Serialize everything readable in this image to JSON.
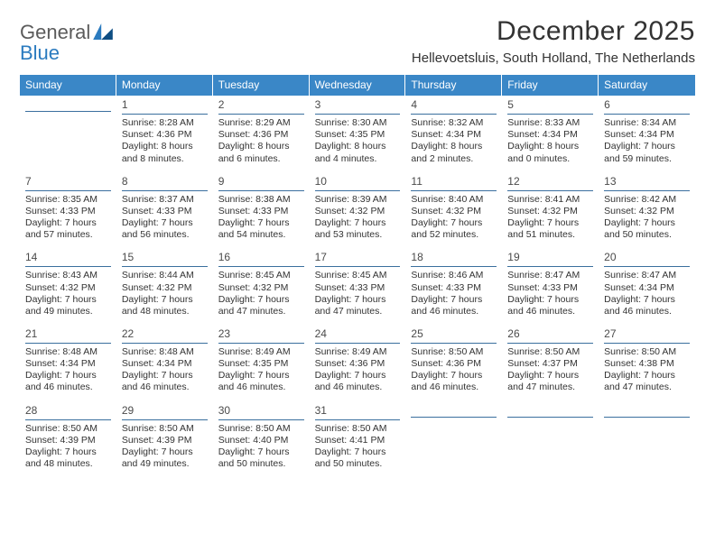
{
  "logo": {
    "word1": "General",
    "word2": "Blue"
  },
  "title": "December 2025",
  "subtitle": "Hellevoetsluis, South Holland, The Netherlands",
  "colors": {
    "header_bg": "#3a87c7",
    "header_text": "#ffffff",
    "daynum_rule": "#3a6f9e",
    "body_text": "#333333",
    "logo_gray": "#5b5b5b",
    "logo_blue": "#2b7bbf"
  },
  "days_of_week": [
    "Sunday",
    "Monday",
    "Tuesday",
    "Wednesday",
    "Thursday",
    "Friday",
    "Saturday"
  ],
  "weeks": [
    [
      {
        "num": "",
        "lines": []
      },
      {
        "num": "1",
        "lines": [
          "Sunrise: 8:28 AM",
          "Sunset: 4:36 PM",
          "Daylight: 8 hours",
          "and 8 minutes."
        ]
      },
      {
        "num": "2",
        "lines": [
          "Sunrise: 8:29 AM",
          "Sunset: 4:36 PM",
          "Daylight: 8 hours",
          "and 6 minutes."
        ]
      },
      {
        "num": "3",
        "lines": [
          "Sunrise: 8:30 AM",
          "Sunset: 4:35 PM",
          "Daylight: 8 hours",
          "and 4 minutes."
        ]
      },
      {
        "num": "4",
        "lines": [
          "Sunrise: 8:32 AM",
          "Sunset: 4:34 PM",
          "Daylight: 8 hours",
          "and 2 minutes."
        ]
      },
      {
        "num": "5",
        "lines": [
          "Sunrise: 8:33 AM",
          "Sunset: 4:34 PM",
          "Daylight: 8 hours",
          "and 0 minutes."
        ]
      },
      {
        "num": "6",
        "lines": [
          "Sunrise: 8:34 AM",
          "Sunset: 4:34 PM",
          "Daylight: 7 hours",
          "and 59 minutes."
        ]
      }
    ],
    [
      {
        "num": "7",
        "lines": [
          "Sunrise: 8:35 AM",
          "Sunset: 4:33 PM",
          "Daylight: 7 hours",
          "and 57 minutes."
        ]
      },
      {
        "num": "8",
        "lines": [
          "Sunrise: 8:37 AM",
          "Sunset: 4:33 PM",
          "Daylight: 7 hours",
          "and 56 minutes."
        ]
      },
      {
        "num": "9",
        "lines": [
          "Sunrise: 8:38 AM",
          "Sunset: 4:33 PM",
          "Daylight: 7 hours",
          "and 54 minutes."
        ]
      },
      {
        "num": "10",
        "lines": [
          "Sunrise: 8:39 AM",
          "Sunset: 4:32 PM",
          "Daylight: 7 hours",
          "and 53 minutes."
        ]
      },
      {
        "num": "11",
        "lines": [
          "Sunrise: 8:40 AM",
          "Sunset: 4:32 PM",
          "Daylight: 7 hours",
          "and 52 minutes."
        ]
      },
      {
        "num": "12",
        "lines": [
          "Sunrise: 8:41 AM",
          "Sunset: 4:32 PM",
          "Daylight: 7 hours",
          "and 51 minutes."
        ]
      },
      {
        "num": "13",
        "lines": [
          "Sunrise: 8:42 AM",
          "Sunset: 4:32 PM",
          "Daylight: 7 hours",
          "and 50 minutes."
        ]
      }
    ],
    [
      {
        "num": "14",
        "lines": [
          "Sunrise: 8:43 AM",
          "Sunset: 4:32 PM",
          "Daylight: 7 hours",
          "and 49 minutes."
        ]
      },
      {
        "num": "15",
        "lines": [
          "Sunrise: 8:44 AM",
          "Sunset: 4:32 PM",
          "Daylight: 7 hours",
          "and 48 minutes."
        ]
      },
      {
        "num": "16",
        "lines": [
          "Sunrise: 8:45 AM",
          "Sunset: 4:32 PM",
          "Daylight: 7 hours",
          "and 47 minutes."
        ]
      },
      {
        "num": "17",
        "lines": [
          "Sunrise: 8:45 AM",
          "Sunset: 4:33 PM",
          "Daylight: 7 hours",
          "and 47 minutes."
        ]
      },
      {
        "num": "18",
        "lines": [
          "Sunrise: 8:46 AM",
          "Sunset: 4:33 PM",
          "Daylight: 7 hours",
          "and 46 minutes."
        ]
      },
      {
        "num": "19",
        "lines": [
          "Sunrise: 8:47 AM",
          "Sunset: 4:33 PM",
          "Daylight: 7 hours",
          "and 46 minutes."
        ]
      },
      {
        "num": "20",
        "lines": [
          "Sunrise: 8:47 AM",
          "Sunset: 4:34 PM",
          "Daylight: 7 hours",
          "and 46 minutes."
        ]
      }
    ],
    [
      {
        "num": "21",
        "lines": [
          "Sunrise: 8:48 AM",
          "Sunset: 4:34 PM",
          "Daylight: 7 hours",
          "and 46 minutes."
        ]
      },
      {
        "num": "22",
        "lines": [
          "Sunrise: 8:48 AM",
          "Sunset: 4:34 PM",
          "Daylight: 7 hours",
          "and 46 minutes."
        ]
      },
      {
        "num": "23",
        "lines": [
          "Sunrise: 8:49 AM",
          "Sunset: 4:35 PM",
          "Daylight: 7 hours",
          "and 46 minutes."
        ]
      },
      {
        "num": "24",
        "lines": [
          "Sunrise: 8:49 AM",
          "Sunset: 4:36 PM",
          "Daylight: 7 hours",
          "and 46 minutes."
        ]
      },
      {
        "num": "25",
        "lines": [
          "Sunrise: 8:50 AM",
          "Sunset: 4:36 PM",
          "Daylight: 7 hours",
          "and 46 minutes."
        ]
      },
      {
        "num": "26",
        "lines": [
          "Sunrise: 8:50 AM",
          "Sunset: 4:37 PM",
          "Daylight: 7 hours",
          "and 47 minutes."
        ]
      },
      {
        "num": "27",
        "lines": [
          "Sunrise: 8:50 AM",
          "Sunset: 4:38 PM",
          "Daylight: 7 hours",
          "and 47 minutes."
        ]
      }
    ],
    [
      {
        "num": "28",
        "lines": [
          "Sunrise: 8:50 AM",
          "Sunset: 4:39 PM",
          "Daylight: 7 hours",
          "and 48 minutes."
        ]
      },
      {
        "num": "29",
        "lines": [
          "Sunrise: 8:50 AM",
          "Sunset: 4:39 PM",
          "Daylight: 7 hours",
          "and 49 minutes."
        ]
      },
      {
        "num": "30",
        "lines": [
          "Sunrise: 8:50 AM",
          "Sunset: 4:40 PM",
          "Daylight: 7 hours",
          "and 50 minutes."
        ]
      },
      {
        "num": "31",
        "lines": [
          "Sunrise: 8:50 AM",
          "Sunset: 4:41 PM",
          "Daylight: 7 hours",
          "and 50 minutes."
        ]
      },
      {
        "num": "",
        "lines": []
      },
      {
        "num": "",
        "lines": []
      },
      {
        "num": "",
        "lines": []
      }
    ]
  ]
}
